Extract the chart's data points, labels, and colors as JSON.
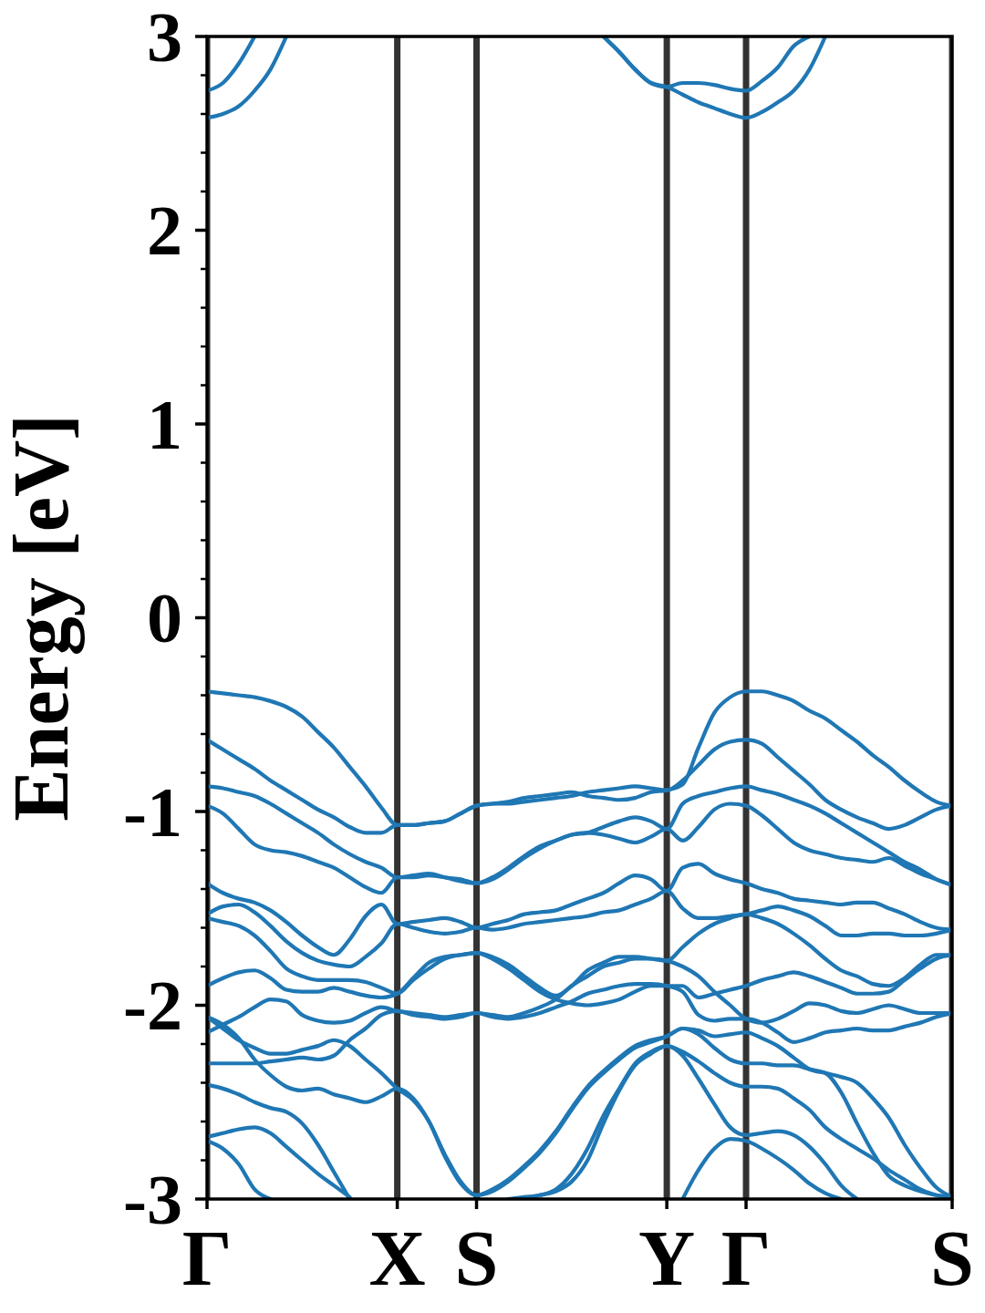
{
  "chart_data": {
    "type": "line",
    "ylabel": "Energy [eV]",
    "grid": "x",
    "categories": [
      "Γ",
      null,
      null,
      null,
      null,
      null,
      null,
      null,
      null,
      null,
      null,
      null,
      "X",
      null,
      null,
      null,
      null,
      "S",
      null,
      null,
      null,
      null,
      null,
      null,
      null,
      null,
      null,
      null,
      null,
      "Y",
      null,
      null,
      null,
      null,
      "Γ",
      null,
      null,
      null,
      null,
      null,
      null,
      null,
      null,
      null,
      null,
      null,
      null,
      "S"
    ],
    "ylim": [
      -3,
      3
    ],
    "yticks": [
      -3,
      {
        "value": -2.8,
        "label": null
      },
      {
        "value": -2.6,
        "label": null
      },
      {
        "value": -2.4,
        "label": null
      },
      {
        "value": -2.2,
        "label": null
      },
      -2,
      {
        "value": -1.8,
        "label": null
      },
      {
        "value": -1.6,
        "label": null
      },
      {
        "value": -1.4,
        "label": null
      },
      {
        "value": -1.2,
        "label": null
      },
      -1,
      {
        "value": -0.8,
        "label": null
      },
      {
        "value": -0.6,
        "label": null
      },
      {
        "value": -0.4,
        "label": null
      },
      {
        "value": -0.2,
        "label": null
      },
      0,
      {
        "value": 0.2,
        "label": null
      },
      {
        "value": 0.4,
        "label": null
      },
      {
        "value": 0.6,
        "label": null
      },
      {
        "value": 0.8,
        "label": null
      },
      1,
      {
        "value": 1.2,
        "label": null
      },
      {
        "value": 1.4,
        "label": null
      },
      {
        "value": 1.6,
        "label": null
      },
      {
        "value": 1.8,
        "label": null
      },
      2,
      {
        "value": 2.2,
        "label": null
      },
      {
        "value": 2.4,
        "label": null
      },
      {
        "value": 2.6,
        "label": null
      },
      {
        "value": 2.8,
        "label": null
      },
      3
    ],
    "series": [
      {
        "color": "#1f77b4",
        "values": [
          2.72,
          2.76,
          2.86,
          3,
          null,
          null,
          null,
          null,
          null,
          null,
          null,
          null,
          null,
          null,
          null,
          null,
          null,
          null,
          null,
          null,
          null,
          null,
          null,
          null,
          null,
          3,
          2.92,
          2.83,
          2.76,
          2.74,
          2.76,
          2.76,
          2.75,
          2.73,
          2.72,
          2.77,
          2.84,
          2.95,
          3,
          null,
          null,
          null,
          null,
          null,
          null,
          null,
          null,
          null
        ]
      },
      {
        "color": "#1f77b4",
        "values": [
          2.58,
          2.6,
          2.64,
          2.72,
          2.83,
          3,
          null,
          null,
          null,
          null,
          null,
          null,
          null,
          null,
          null,
          null,
          null,
          null,
          null,
          null,
          null,
          null,
          null,
          null,
          null,
          3,
          2.92,
          2.83,
          2.76,
          2.74,
          2.7,
          2.66,
          2.63,
          2.6,
          2.58,
          2.61,
          2.66,
          2.72,
          2.83,
          3,
          null,
          null,
          null,
          null,
          null,
          null,
          null,
          null
        ]
      },
      {
        "color": "#1f77b4",
        "values": [
          -0.38,
          -0.39,
          -0.4,
          -0.41,
          -0.43,
          -0.46,
          -0.51,
          -0.59,
          -0.67,
          -0.77,
          -0.87,
          -0.98,
          -1.07,
          -1.07,
          -1.06,
          -1.05,
          -1.01,
          -0.97,
          -0.96,
          -0.95,
          -0.93,
          -0.92,
          -0.91,
          -0.9,
          -0.92,
          -0.93,
          -0.94,
          -0.93,
          -0.9,
          -0.89,
          -0.86,
          -0.67,
          -0.49,
          -0.41,
          -0.38,
          -0.38,
          -0.4,
          -0.43,
          -0.48,
          -0.52,
          -0.58,
          -0.64,
          -0.71,
          -0.77,
          -0.84,
          -0.9,
          -0.95,
          -0.97
        ]
      },
      {
        "color": "#1f77b4",
        "values": [
          -0.63,
          -0.68,
          -0.73,
          -0.78,
          -0.84,
          -0.89,
          -0.94,
          -0.99,
          -1.03,
          -1.08,
          -1.11,
          -1.11,
          -1.07,
          -1.07,
          -1.06,
          -1.05,
          -1.01,
          -0.97,
          -0.96,
          -0.96,
          -0.95,
          -0.94,
          -0.93,
          -0.92,
          -0.9,
          -0.89,
          -0.88,
          -0.87,
          -0.88,
          -0.89,
          -0.84,
          -0.76,
          -0.68,
          -0.64,
          -0.63,
          -0.65,
          -0.72,
          -0.79,
          -0.86,
          -0.94,
          -0.99,
          -1.03,
          -1.06,
          -1.09,
          -1.07,
          -1.03,
          -0.99,
          -0.97
        ]
      },
      {
        "color": "#1f77b4",
        "values": [
          -0.87,
          -0.88,
          -0.9,
          -0.92,
          -0.96,
          -1.01,
          -1.06,
          -1.11,
          -1.17,
          -1.22,
          -1.26,
          -1.29,
          -1.34,
          -1.33,
          -1.32,
          -1.34,
          -1.35,
          -1.37,
          -1.34,
          -1.29,
          -1.23,
          -1.18,
          -1.15,
          -1.12,
          -1.11,
          -1.08,
          -1.05,
          -1.03,
          -1.05,
          -1.09,
          -0.96,
          -0.92,
          -0.9,
          -0.88,
          -0.87,
          -0.89,
          -0.91,
          -0.94,
          -0.97,
          -1.01,
          -1.06,
          -1.11,
          -1.16,
          -1.21,
          -1.26,
          -1.3,
          -1.35,
          -1.38
        ]
      },
      {
        "color": "#1f77b4",
        "values": [
          -0.97,
          -1.01,
          -1.09,
          -1.17,
          -1.2,
          -1.21,
          -1.23,
          -1.26,
          -1.29,
          -1.34,
          -1.39,
          -1.42,
          -1.34,
          -1.34,
          -1.33,
          -1.34,
          -1.36,
          -1.37,
          -1.35,
          -1.3,
          -1.24,
          -1.19,
          -1.15,
          -1.12,
          -1.11,
          -1.12,
          -1.14,
          -1.16,
          -1.13,
          -1.09,
          -1.15,
          -1.08,
          -0.99,
          -0.96,
          -0.97,
          -1.02,
          -1.09,
          -1.16,
          -1.2,
          -1.22,
          -1.24,
          -1.25,
          -1.26,
          -1.24,
          -1.28,
          -1.32,
          -1.35,
          -1.38
        ]
      },
      {
        "color": "#1f77b4",
        "values": [
          -1.37,
          -1.42,
          -1.45,
          -1.47,
          -1.51,
          -1.57,
          -1.64,
          -1.7,
          -1.74,
          -1.66,
          -1.54,
          -1.48,
          -1.58,
          -1.57,
          -1.56,
          -1.55,
          -1.57,
          -1.6,
          -1.58,
          -1.56,
          -1.53,
          -1.52,
          -1.51,
          -1.48,
          -1.45,
          -1.42,
          -1.37,
          -1.33,
          -1.35,
          -1.41,
          -1.29,
          -1.27,
          -1.32,
          -1.35,
          -1.37,
          -1.4,
          -1.42,
          -1.45,
          -1.46,
          -1.47,
          -1.48,
          -1.47,
          -1.47,
          -1.5,
          -1.53,
          -1.57,
          -1.6,
          -1.61
        ]
      },
      {
        "color": "#1f77b4",
        "values": [
          -1.53,
          -1.49,
          -1.48,
          -1.52,
          -1.59,
          -1.67,
          -1.73,
          -1.77,
          -1.79,
          -1.8,
          -1.75,
          -1.68,
          -1.58,
          -1.6,
          -1.62,
          -1.63,
          -1.62,
          -1.6,
          -1.61,
          -1.6,
          -1.58,
          -1.57,
          -1.56,
          -1.55,
          -1.54,
          -1.52,
          -1.51,
          -1.48,
          -1.45,
          -1.41,
          -1.5,
          -1.55,
          -1.55,
          -1.54,
          -1.53,
          -1.51,
          -1.49,
          -1.51,
          -1.54,
          -1.59,
          -1.64,
          -1.64,
          -1.63,
          -1.63,
          -1.64,
          -1.64,
          -1.63,
          -1.61
        ]
      },
      {
        "color": "#1f77b4",
        "values": [
          -1.55,
          -1.57,
          -1.59,
          -1.64,
          -1.72,
          -1.81,
          -1.85,
          -1.87,
          -1.87,
          -1.87,
          -1.88,
          -1.91,
          -1.94,
          -1.87,
          -1.81,
          -1.76,
          -1.74,
          -1.73,
          -1.75,
          -1.79,
          -1.85,
          -1.91,
          -1.95,
          -1.9,
          -1.82,
          -1.78,
          -1.75,
          -1.75,
          -1.76,
          -1.77,
          -1.7,
          -1.63,
          -1.58,
          -1.55,
          -1.53,
          -1.55,
          -1.58,
          -1.63,
          -1.69,
          -1.76,
          -1.82,
          -1.85,
          -1.89,
          -1.9,
          -1.86,
          -1.79,
          -1.74,
          -1.74
        ]
      },
      {
        "color": "#1f77b4",
        "values": [
          -1.9,
          -1.86,
          -1.83,
          -1.82,
          -1.86,
          -1.92,
          -1.93,
          -1.93,
          -1.91,
          -1.93,
          -1.95,
          -1.96,
          -1.94,
          -1.86,
          -1.78,
          -1.75,
          -1.74,
          -1.73,
          -1.76,
          -1.81,
          -1.87,
          -1.93,
          -1.97,
          -1.99,
          -2.0,
          -1.99,
          -1.97,
          -1.93,
          -1.9,
          -1.9,
          -1.9,
          -1.96,
          -1.94,
          -1.92,
          -1.9,
          -1.87,
          -1.85,
          -1.83,
          -1.85,
          -1.88,
          -1.91,
          -1.94,
          -1.94,
          -1.93,
          -1.87,
          -1.81,
          -1.76,
          -1.74
        ]
      },
      {
        "color": "#1f77b4",
        "values": [
          -2.14,
          -2.1,
          -2.06,
          -2.01,
          -1.97,
          -1.98,
          -2.05,
          -2.08,
          -2.09,
          -2.08,
          -2.04,
          -2.01,
          -2.03,
          -2.04,
          -2.05,
          -2.06,
          -2.05,
          -2.04,
          -2.05,
          -2.06,
          -2.04,
          -2.01,
          -1.97,
          -1.9,
          -1.85,
          -1.8,
          -1.78,
          -1.76,
          -1.76,
          -1.77,
          -1.8,
          -1.85,
          -1.93,
          -2.0,
          -2.07,
          -2.09,
          -2.07,
          -2.03,
          -1.99,
          -2.0,
          -2.03,
          -2.04,
          -2.02,
          -2.0,
          -2.02,
          -2.04,
          -2.04,
          -2.04
        ]
      },
      {
        "color": "#1f77b4",
        "values": [
          -2.3,
          -2.3,
          -2.3,
          -2.3,
          -2.29,
          -2.28,
          -2.27,
          -2.28,
          -2.26,
          -2.18,
          -2.12,
          -2.05,
          -2.03,
          -2.05,
          -2.06,
          -2.07,
          -2.06,
          -2.04,
          -2.06,
          -2.07,
          -2.06,
          -2.04,
          -2.01,
          -1.98,
          -1.94,
          -1.92,
          -1.9,
          -1.89,
          -1.89,
          -1.9,
          -1.93,
          -2.05,
          -2.08,
          -2.07,
          -2.07,
          -2.09,
          -2.14,
          -2.19,
          -2.17,
          -2.14,
          -2.13,
          -2.12,
          -2.13,
          -2.13,
          -2.11,
          -2.09,
          -2.06,
          -2.04
        ]
      },
      {
        "color": "#1f77b4",
        "values": [
          -2.06,
          -2.1,
          -2.17,
          -2.28,
          -2.36,
          -2.42,
          -2.44,
          -2.43,
          -2.46,
          -2.48,
          -2.5,
          -2.47,
          -2.43,
          -2.48,
          -2.6,
          -2.77,
          -2.91,
          -2.98,
          -2.95,
          -2.9,
          -2.83,
          -2.75,
          -2.65,
          -2.53,
          -2.42,
          -2.34,
          -2.27,
          -2.21,
          -2.18,
          -2.16,
          -2.12,
          -2.13,
          -2.16,
          -2.15,
          -2.14,
          -2.17,
          -2.21,
          -2.27,
          -2.33,
          -2.35,
          -2.37,
          -2.4,
          -2.48,
          -2.58,
          -2.72,
          -2.84,
          -2.94,
          -2.99
        ]
      },
      {
        "color": "#1f77b4",
        "values": [
          -2.06,
          -2.12,
          -2.18,
          -2.22,
          -2.25,
          -2.25,
          -2.23,
          -2.21,
          -2.18,
          -2.21,
          -2.28,
          -2.35,
          -2.43,
          -2.49,
          -2.6,
          -2.78,
          -2.92,
          -2.98,
          -2.96,
          -2.91,
          -2.84,
          -2.76,
          -2.66,
          -2.54,
          -2.43,
          -2.35,
          -2.28,
          -2.22,
          -2.19,
          -2.16,
          -2.12,
          -2.15,
          -2.22,
          -2.28,
          -2.3,
          -2.3,
          -2.31,
          -2.31,
          -2.33,
          -2.35,
          -2.45,
          -2.61,
          -2.76,
          -2.88,
          -2.93,
          -2.96,
          -2.98,
          -2.99
        ]
      },
      {
        "color": "#1f77b4",
        "values": [
          -2.41,
          -2.43,
          -2.46,
          -2.5,
          -2.53,
          -2.55,
          -2.61,
          -2.72,
          -2.86,
          -3,
          null,
          null,
          null,
          null,
          null,
          null,
          null,
          null,
          null,
          -3,
          -2.99,
          -2.98,
          -2.95,
          -2.87,
          -2.74,
          -2.57,
          -2.43,
          -2.3,
          -2.24,
          -2.21,
          -2.24,
          -2.29,
          -2.35,
          -2.4,
          -2.42,
          -2.42,
          -2.43,
          -2.48,
          -2.54,
          -2.63,
          -2.69,
          -2.74,
          -2.79,
          -2.85,
          -2.9,
          -2.95,
          -2.98,
          -2.99
        ]
      },
      {
        "color": "#1f77b4",
        "values": [
          -2.68,
          -2.66,
          -2.64,
          -2.63,
          -2.66,
          -2.73,
          -2.8,
          -2.87,
          -2.93,
          -2.99,
          null,
          null,
          null,
          null,
          null,
          null,
          null,
          null,
          null,
          null,
          -3,
          -2.98,
          -2.96,
          -2.91,
          -2.8,
          -2.61,
          -2.44,
          -2.31,
          -2.25,
          -2.21,
          -2.26,
          -2.38,
          -2.51,
          -2.63,
          -2.67,
          -2.66,
          -2.65,
          -2.67,
          -2.73,
          -2.82,
          -2.93,
          -3,
          null,
          null,
          null,
          null,
          null,
          null
        ]
      },
      {
        "color": "#1f77b4",
        "values": [
          -2.7,
          -2.74,
          -2.82,
          -2.95,
          -3,
          null,
          null,
          null,
          null,
          null,
          null,
          null,
          null,
          null,
          null,
          null,
          null,
          null,
          null,
          null,
          null,
          null,
          null,
          null,
          null,
          null,
          null,
          null,
          null,
          null,
          -3,
          -2.85,
          -2.74,
          -2.69,
          -2.7,
          -2.74,
          -2.79,
          -2.85,
          -2.92,
          -2.97,
          -3,
          null,
          null,
          null,
          null,
          null,
          null,
          null
        ]
      }
    ]
  }
}
